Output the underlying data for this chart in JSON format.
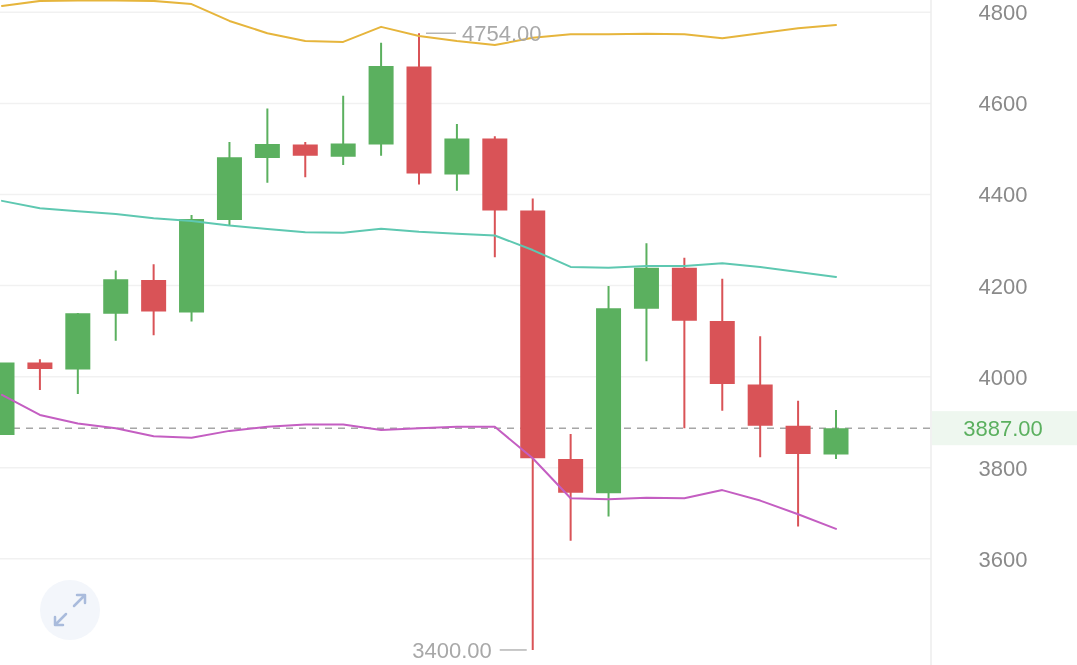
{
  "chart_data": {
    "type": "candlestick",
    "categories": [
      null,
      null,
      null,
      null,
      null,
      null,
      null,
      null,
      null,
      null,
      null,
      null,
      null,
      null,
      null,
      null,
      null,
      null,
      null,
      null,
      null,
      null,
      null
    ],
    "ohlc": [
      [
        3872,
        4031,
        3872,
        4031
      ],
      [
        4031,
        4038,
        3971,
        4017
      ],
      [
        4016,
        4140,
        3962,
        4139
      ],
      [
        4138,
        4233,
        4079,
        4214
      ],
      [
        4212,
        4247,
        4091,
        4143
      ],
      [
        4141,
        4355,
        4121,
        4346
      ],
      [
        4344,
        4515,
        4331,
        4482
      ],
      [
        4480,
        4589,
        4426,
        4511
      ],
      [
        4510,
        4515,
        4438,
        4485
      ],
      [
        4483,
        4617,
        4465,
        4512
      ],
      [
        4510,
        4733,
        4485,
        4682
      ],
      [
        4681,
        4754,
        4422,
        4446
      ],
      [
        4444,
        4555,
        4408,
        4523
      ],
      [
        4523,
        4528,
        4262,
        4365
      ],
      [
        4365,
        4391,
        3400,
        3821
      ],
      [
        3819,
        3874,
        3640,
        3745
      ],
      [
        3744,
        4199,
        3693,
        4150
      ],
      [
        4149,
        4293,
        4034,
        4239
      ],
      [
        4239,
        4261,
        3887,
        4123
      ],
      [
        4122,
        4215,
        3925,
        3984
      ],
      [
        3983,
        4089,
        3823,
        3892
      ],
      [
        3892,
        3947,
        3671,
        3830
      ],
      [
        3829,
        3927,
        3819,
        3887
      ]
    ],
    "colors": [
      "#5bb05f",
      "#d95357",
      "#5bb05f",
      "#5bb05f",
      "#d95357",
      "#5bb05f",
      "#5bb05f",
      "#5bb05f",
      "#d95357",
      "#5bb05f",
      "#5bb05f",
      "#d95357",
      "#5bb05f",
      "#d95357",
      "#d95357",
      "#d95357",
      "#5bb05f",
      "#5bb05f",
      "#d95357",
      "#d95357",
      "#d95357",
      "#d95357",
      "#5bb05f"
    ],
    "series": [
      {
        "type": "line",
        "color": "#e6b53c",
        "values": [
          4814,
          4825,
          4826,
          4826,
          4825,
          4818,
          4781,
          4754,
          4737,
          4735,
          4768,
          4748,
          4737,
          4728,
          4744,
          4752,
          4752,
          4753,
          4752,
          4743,
          4754,
          4765,
          4772
        ]
      },
      {
        "type": "line",
        "color": "#5ec8b1",
        "values": [
          4386,
          4370,
          4363,
          4357,
          4348,
          4342,
          4332,
          4324,
          4317,
          4316,
          4325,
          4318,
          4314,
          4310,
          4278,
          4241,
          4239,
          4243,
          4243,
          4249,
          4241,
          4230,
          4219
        ]
      },
      {
        "type": "line",
        "color": "#c45ec2",
        "values": [
          3960,
          3916,
          3897,
          3887,
          3869,
          3866,
          3881,
          3890,
          3895,
          3895,
          3883,
          3887,
          3890,
          3890,
          3821,
          3733,
          3731,
          3734,
          3733,
          3751,
          3728,
          3698,
          3666
        ]
      }
    ],
    "ylim": [
      3367,
      4827
    ],
    "yticks": [
      3600,
      3800,
      4000,
      4200,
      4400,
      4600,
      4800
    ],
    "grid": "y",
    "tick_labels": "y",
    "ref_lines": [
      {
        "axis": "y",
        "value": 3887,
        "label": "3887.00",
        "color": "#a6a6a6",
        "line_style": "dashed"
      }
    ],
    "annotations": [
      "4754.00",
      "3400.00"
    ]
  }
}
